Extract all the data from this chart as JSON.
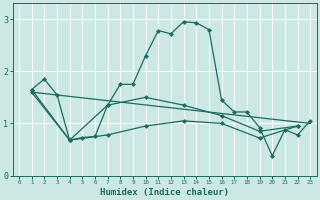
{
  "title": "",
  "xlabel": "Humidex (Indice chaleur)",
  "bg_color": "#cce8e4",
  "line_color": "#1a6b60",
  "grid_color": "#ffffff",
  "xlim": [
    -0.5,
    23.5
  ],
  "ylim": [
    0,
    3.3
  ],
  "yticks": [
    0,
    1,
    2,
    3
  ],
  "xticks": [
    0,
    1,
    2,
    3,
    4,
    5,
    6,
    7,
    8,
    9,
    10,
    11,
    12,
    13,
    14,
    15,
    16,
    17,
    18,
    19,
    20,
    21,
    22,
    23
  ],
  "line1_x": [
    1,
    2,
    3,
    4,
    5,
    6,
    7,
    8,
    9,
    10,
    11,
    12,
    13,
    14,
    15,
    16,
    17,
    18,
    19,
    20,
    21,
    22,
    23
  ],
  "line1_y": [
    1.65,
    1.85,
    1.55,
    0.68,
    0.73,
    0.75,
    1.35,
    1.75,
    1.75,
    2.3,
    2.78,
    2.72,
    2.95,
    2.93,
    2.8,
    1.45,
    1.22,
    1.22,
    0.92,
    0.38,
    0.88,
    0.78,
    1.05
  ],
  "line2_x": [
    1,
    4,
    7,
    10,
    13,
    16,
    19,
    22
  ],
  "line2_y": [
    1.65,
    0.68,
    1.35,
    1.5,
    1.35,
    1.15,
    0.85,
    0.95
  ],
  "line3_x": [
    1,
    4,
    7,
    10,
    13,
    16,
    19,
    22
  ],
  "line3_y": [
    1.6,
    0.68,
    0.78,
    0.95,
    1.05,
    1.0,
    0.72,
    0.95
  ],
  "line4_x": [
    1,
    23
  ],
  "line4_y": [
    1.6,
    1.0
  ]
}
